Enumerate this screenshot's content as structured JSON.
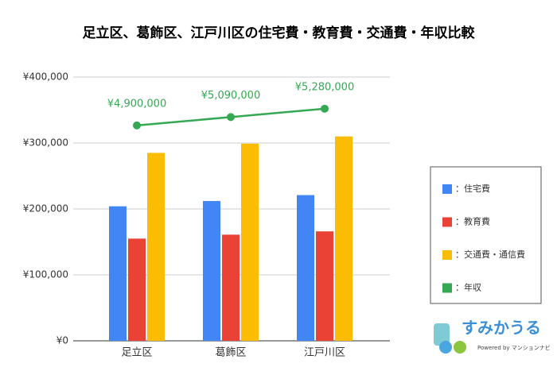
{
  "chart_data": {
    "type": "bar-line",
    "title": "足立区、葛飾区、江戸川区の住宅費・教育費・交通費・年収比較",
    "categories": [
      "足立区",
      "葛飾区",
      "江戸川区"
    ],
    "series": [
      {
        "name": "：住宅費",
        "color": "#4285f4",
        "type": "bar",
        "values": [
          204000,
          212000,
          221000
        ]
      },
      {
        "name": "：教育費",
        "color": "#ea4335",
        "type": "bar",
        "values": [
          155000,
          161000,
          166000
        ]
      },
      {
        "name": "：交通費・通信費",
        "color": "#fbbc04",
        "type": "bar",
        "values": [
          285000,
          299000,
          310000
        ]
      },
      {
        "name": "：年収",
        "color": "#34a853",
        "type": "line",
        "axis": "y2",
        "values": [
          4900000,
          5090000,
          5280000
        ],
        "value_labels": [
          "¥4,900,000",
          "¥5,090,000",
          "¥5,280,000"
        ]
      }
    ],
    "ylim": [
      0,
      400000
    ],
    "yticks": [
      {
        "value": 0,
        "label": "¥0"
      },
      {
        "value": 100000,
        "label": "¥100,000"
      },
      {
        "value": 200000,
        "label": "¥200,000"
      },
      {
        "value": 300000,
        "label": "¥300,000"
      },
      {
        "value": 400000,
        "label": "¥400,000"
      }
    ],
    "y2lim": [
      0,
      6000000
    ],
    "grid": true,
    "legend": "right"
  },
  "logo": {
    "name": "すみかうる",
    "tagline": "Powered by マンションナビ"
  }
}
